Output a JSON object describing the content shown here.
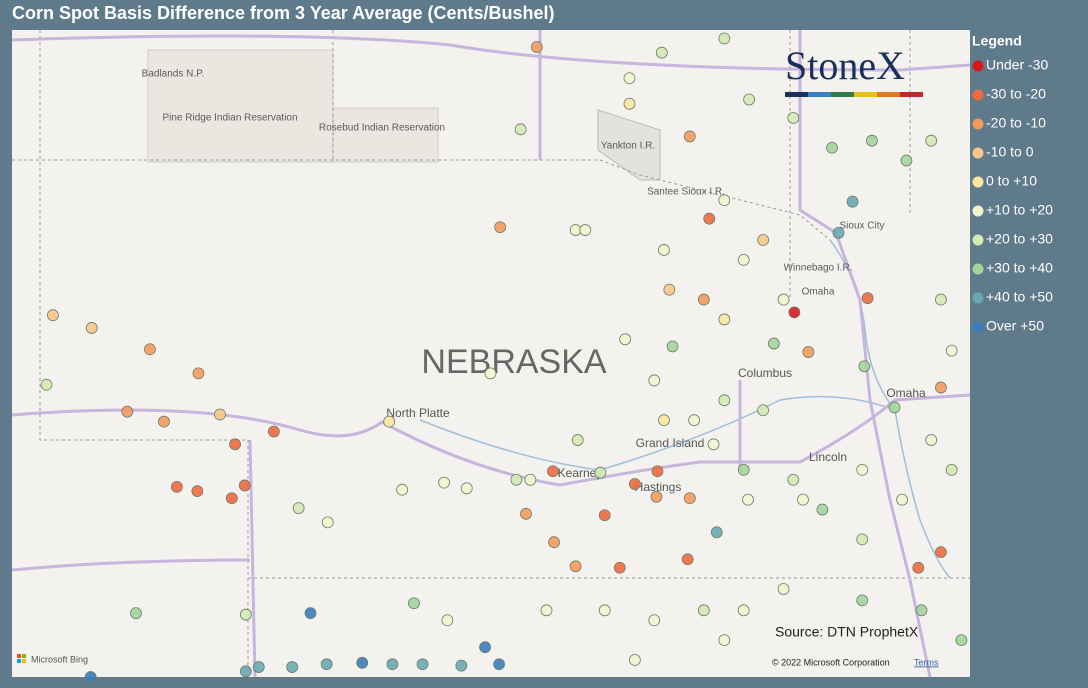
{
  "title": "Corn Spot Basis Difference from 3 Year Average (Cents/Bushel)",
  "legend": {
    "title": "Legend",
    "items": [
      {
        "label": "Under -30",
        "color": "#d7191c"
      },
      {
        "label": "-30 to -20",
        "color": "#ee6a3f"
      },
      {
        "label": "-20 to -10",
        "color": "#f39a5c"
      },
      {
        "label": "-10 to 0",
        "color": "#f8c68a"
      },
      {
        "label": "0 to +10",
        "color": "#fbe7a1"
      },
      {
        "label": "+10 to +20",
        "color": "#f1f5cd"
      },
      {
        "label": "+20 to +30",
        "color": "#d3eab2"
      },
      {
        "label": "+30 to +40",
        "color": "#a2d49c"
      },
      {
        "label": "+40 to +50",
        "color": "#6aa9b2"
      },
      {
        "label": "Over +50",
        "color": "#3b7dbb"
      }
    ]
  },
  "logo": "StoneX",
  "source": "Source: DTN ProphetX",
  "map": {
    "extent": {
      "lon": [
        -104.27,
        -95.38
      ],
      "lat": [
        43.93,
        39.37
      ]
    },
    "labels": {
      "badlands": "Badlands N.P.",
      "pine_ridge": "Pine Ridge Indian Reservation",
      "rosebud": "Rosebud Indian Reservation",
      "yankton": "Yankton I.R.",
      "santee": "Santee Sioux I.R.",
      "sioux_city": "Sioux City",
      "winnebago": "Winnebago I.R.",
      "omaha_ir": "Omaha",
      "state": "NEBRASKA",
      "north_platte": "North Platte",
      "columbus": "Columbus",
      "omaha": "Omaha",
      "grand_island": "Grand Island",
      "kearney": "Kearney",
      "hastings": "Hastings",
      "lincoln": "Lincoln"
    },
    "attribution": {
      "bing": "Microsoft Bing",
      "copyright": "© 2022 Microsoft Corporation",
      "terms": "Terms"
    }
  },
  "points": [
    [
      -103.89,
      41.92,
      3
    ],
    [
      -102.99,
      41.68,
      2
    ],
    [
      -102.54,
      41.51,
      2
    ],
    [
      -103.2,
      41.24,
      2
    ],
    [
      -102.86,
      41.17,
      2
    ],
    [
      -102.2,
      41.01,
      1
    ],
    [
      -101.84,
      41.1,
      1
    ],
    [
      -102.74,
      40.71,
      1
    ],
    [
      -102.55,
      40.68,
      1
    ],
    [
      -102.23,
      40.63,
      1
    ],
    [
      -102.11,
      40.72,
      1
    ],
    [
      -103.95,
      41.43,
      6
    ],
    [
      -100.77,
      41.17,
      4
    ],
    [
      -99.74,
      42.54,
      2
    ],
    [
      -99.4,
      43.81,
      2
    ],
    [
      -97.8,
      42.6,
      1
    ],
    [
      -97.01,
      41.94,
      0
    ],
    [
      -96.33,
      42.04,
      1
    ],
    [
      -96.47,
      42.72,
      8
    ],
    [
      -96.6,
      42.5,
      8
    ],
    [
      -99.25,
      40.82,
      1
    ],
    [
      -98.28,
      40.82,
      1
    ],
    [
      -98.63,
      40.14,
      1
    ],
    [
      -98.0,
      40.2,
      1
    ],
    [
      -98.77,
      40.51,
      1
    ],
    [
      -98.49,
      40.73,
      1
    ],
    [
      -99.24,
      40.32,
      2
    ],
    [
      -99.04,
      40.15,
      2
    ],
    [
      -99.5,
      40.52,
      2
    ],
    [
      -95.65,
      40.25,
      1
    ],
    [
      -95.86,
      40.14,
      1
    ],
    [
      -97.98,
      40.63,
      2
    ],
    [
      -98.29,
      40.64,
      2
    ],
    [
      -97.73,
      40.39,
      8
    ],
    [
      -98.14,
      41.7,
      7
    ],
    [
      -97.2,
      41.72,
      7
    ],
    [
      -96.36,
      41.56,
      7
    ],
    [
      -96.08,
      41.27,
      7
    ],
    [
      -102.1,
      39.41,
      8
    ],
    [
      -101.98,
      39.44,
      8
    ],
    [
      -101.67,
      39.44,
      8
    ],
    [
      -101.35,
      39.46,
      8
    ],
    [
      -101.02,
      39.47,
      9
    ],
    [
      -100.74,
      39.46,
      8
    ],
    [
      -100.46,
      39.46,
      8
    ],
    [
      -100.1,
      39.45,
      8
    ],
    [
      -99.88,
      39.58,
      9
    ],
    [
      -99.75,
      39.46,
      9
    ],
    [
      -101.5,
      39.82,
      9
    ],
    [
      -103.54,
      39.37,
      9
    ],
    [
      -103.12,
      39.82,
      7
    ],
    [
      -100.54,
      39.89,
      7
    ],
    [
      -102.1,
      39.81,
      6
    ],
    [
      -101.61,
      40.56,
      6
    ],
    [
      -101.34,
      40.46,
      5
    ],
    [
      -100.65,
      40.69,
      5
    ],
    [
      -100.26,
      40.74,
      5
    ],
    [
      -100.05,
      40.7,
      5
    ],
    [
      -99.59,
      40.76,
      6
    ],
    [
      -99.46,
      40.76,
      5
    ],
    [
      -98.81,
      40.81,
      6
    ],
    [
      -99.02,
      41.04,
      6
    ],
    [
      -99.83,
      41.51,
      5
    ],
    [
      -99.04,
      42.52,
      5
    ],
    [
      -98.95,
      42.52,
      5
    ],
    [
      -99.55,
      43.23,
      6
    ],
    [
      -98.24,
      43.77,
      6
    ],
    [
      -97.66,
      43.87,
      6
    ],
    [
      -98.54,
      43.59,
      5
    ],
    [
      -98.54,
      43.41,
      4
    ],
    [
      -97.98,
      43.18,
      2
    ],
    [
      -97.43,
      43.44,
      6
    ],
    [
      -97.02,
      43.31,
      6
    ],
    [
      -96.66,
      43.1,
      7
    ],
    [
      -96.29,
      43.15,
      7
    ],
    [
      -95.97,
      43.01,
      7
    ],
    [
      -95.74,
      43.15,
      6
    ],
    [
      -95.65,
      42.03,
      6
    ],
    [
      -95.55,
      41.67,
      5
    ],
    [
      -95.65,
      41.41,
      2
    ],
    [
      -95.74,
      41.04,
      5
    ],
    [
      -95.55,
      40.83,
      6
    ],
    [
      -96.01,
      40.62,
      5
    ],
    [
      -96.38,
      40.83,
      5
    ],
    [
      -96.88,
      41.66,
      2
    ],
    [
      -97.3,
      41.25,
      6
    ],
    [
      -97.66,
      41.32,
      6
    ],
    [
      -97.94,
      41.18,
      5
    ],
    [
      -97.48,
      40.83,
      7
    ],
    [
      -97.02,
      40.76,
      6
    ],
    [
      -96.75,
      40.55,
      7
    ],
    [
      -96.38,
      40.34,
      6
    ],
    [
      -97.11,
      39.99,
      5
    ],
    [
      -97.48,
      39.84,
      5
    ],
    [
      -97.85,
      39.84,
      6
    ],
    [
      -98.31,
      39.77,
      5
    ],
    [
      -98.77,
      39.84,
      5
    ],
    [
      -99.31,
      39.84,
      5
    ],
    [
      -100.23,
      39.77,
      5
    ],
    [
      -96.38,
      39.91,
      7
    ],
    [
      -95.83,
      39.84,
      7
    ],
    [
      -95.46,
      39.63,
      7
    ],
    [
      -97.66,
      39.63,
      5
    ],
    [
      -98.49,
      39.49,
      5
    ],
    [
      -97.11,
      42.03,
      5
    ],
    [
      -97.48,
      42.31,
      5
    ],
    [
      -98.22,
      42.38,
      5
    ],
    [
      -97.66,
      42.73,
      5
    ],
    [
      -97.3,
      42.45,
      3
    ],
    [
      -98.17,
      42.1,
      3
    ],
    [
      -97.85,
      42.03,
      2
    ],
    [
      -97.66,
      41.89,
      4
    ],
    [
      -98.58,
      41.75,
      5
    ],
    [
      -98.31,
      41.46,
      5
    ],
    [
      -98.22,
      41.18,
      4
    ],
    [
      -97.76,
      41.01,
      5
    ],
    [
      -97.44,
      40.62,
      5
    ],
    [
      -96.93,
      40.62,
      5
    ],
    [
      -102.34,
      41.22,
      3
    ],
    [
      -103.53,
      41.83,
      3
    ]
  ]
}
